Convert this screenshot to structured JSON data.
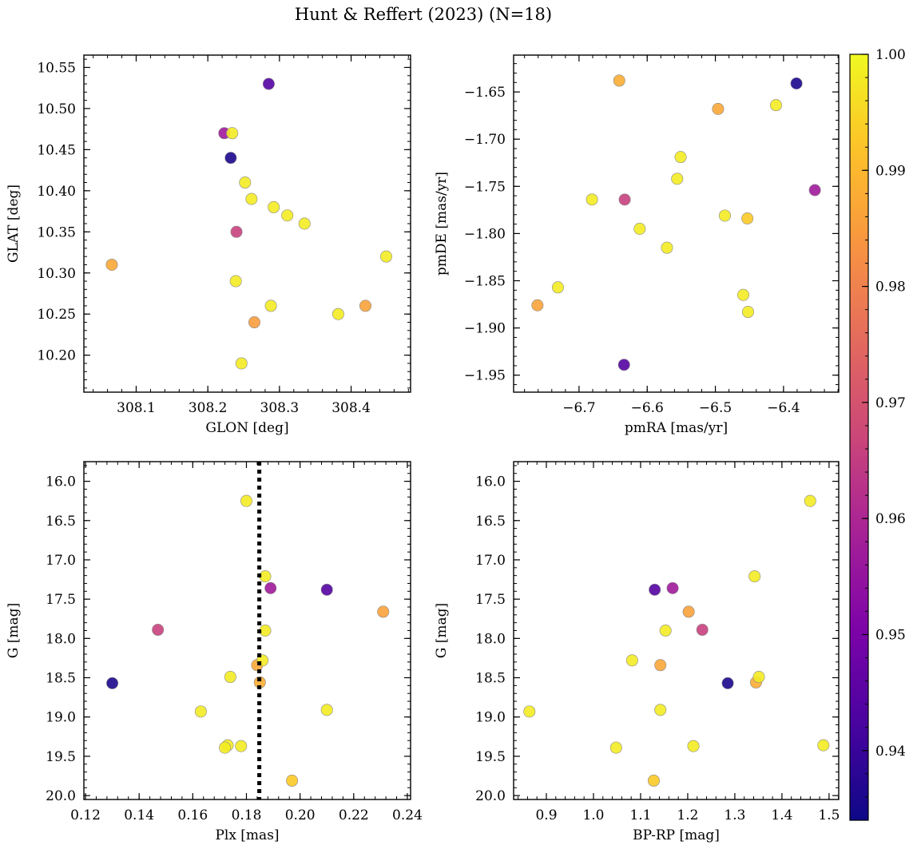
{
  "figure": {
    "title": "Hunt & Reffert (2023) (N=18)"
  },
  "colorbar": {
    "min": 0.934,
    "max": 1.0,
    "ticks": [
      0.94,
      0.95,
      0.96,
      0.97,
      0.98,
      0.99,
      1.0
    ],
    "tick_labels": [
      "0.94",
      "0.95",
      "0.96",
      "0.97",
      "0.98",
      "0.99",
      "1.00"
    ],
    "colormap": "plasma"
  },
  "chart_data": [
    {
      "id": "glon-glat",
      "type": "scatter",
      "title": "",
      "xlabel": "GLON [deg]",
      "ylabel": "GLAT [deg]",
      "xlim": [
        308.027,
        308.483
      ],
      "ylim": [
        10.155,
        10.565
      ],
      "y_inverted": false,
      "xticks": [
        308.1,
        308.2,
        308.3,
        308.4
      ],
      "xtick_labels": [
        "308.1",
        "308.2",
        "308.3",
        "308.4"
      ],
      "yticks": [
        10.2,
        10.25,
        10.3,
        10.35,
        10.4,
        10.45,
        10.5,
        10.55
      ],
      "ytick_labels": [
        "10.20",
        "10.25",
        "10.30",
        "10.35",
        "10.40",
        "10.45",
        "10.50",
        "10.55"
      ],
      "x_minor_step": 0.02,
      "y_minor_step": 0.01,
      "points": [
        {
          "x": 308.066,
          "y": 10.31,
          "c": 0.987
        },
        {
          "x": 308.223,
          "y": 10.47,
          "c": 0.957
        },
        {
          "x": 308.234,
          "y": 10.47,
          "c": 0.998
        },
        {
          "x": 308.232,
          "y": 10.44,
          "c": 0.936
        },
        {
          "x": 308.285,
          "y": 10.53,
          "c": 0.944
        },
        {
          "x": 308.252,
          "y": 10.41,
          "c": 0.998
        },
        {
          "x": 308.261,
          "y": 10.39,
          "c": 0.998
        },
        {
          "x": 308.292,
          "y": 10.38,
          "c": 0.998
        },
        {
          "x": 308.311,
          "y": 10.37,
          "c": 0.998
        },
        {
          "x": 308.335,
          "y": 10.36,
          "c": 0.998
        },
        {
          "x": 308.24,
          "y": 10.35,
          "c": 0.966
        },
        {
          "x": 308.449,
          "y": 10.32,
          "c": 0.998
        },
        {
          "x": 308.239,
          "y": 10.29,
          "c": 0.998
        },
        {
          "x": 308.288,
          "y": 10.26,
          "c": 0.998
        },
        {
          "x": 308.42,
          "y": 10.26,
          "c": 0.986
        },
        {
          "x": 308.382,
          "y": 10.25,
          "c": 0.998
        },
        {
          "x": 308.265,
          "y": 10.24,
          "c": 0.985
        },
        {
          "x": 308.247,
          "y": 10.19,
          "c": 0.998
        }
      ]
    },
    {
      "id": "pmra-pmde",
      "type": "scatter",
      "title": "",
      "xlabel": "pmRA [mas/yr]",
      "ylabel": "pmDE [mas/yr]",
      "xlim": [
        -6.796,
        -6.319
      ],
      "ylim": [
        -1.968,
        -1.611
      ],
      "y_inverted": false,
      "xticks": [
        -6.7,
        -6.6,
        -6.5,
        -6.4
      ],
      "xtick_labels": [
        "−6.7",
        "−6.6",
        "−6.5",
        "−6.4"
      ],
      "yticks": [
        -1.95,
        -1.9,
        -1.85,
        -1.8,
        -1.75,
        -1.7,
        -1.65
      ],
      "ytick_labels": [
        "−1.95",
        "−1.90",
        "−1.85",
        "−1.80",
        "−1.75",
        "−1.70",
        "−1.65"
      ],
      "x_minor_step": 0.02,
      "y_minor_step": 0.01,
      "points": [
        {
          "x": -6.641,
          "y": -1.638,
          "c": 0.988
        },
        {
          "x": -6.381,
          "y": -1.641,
          "c": 0.936
        },
        {
          "x": -6.496,
          "y": -1.668,
          "c": 0.987
        },
        {
          "x": -6.411,
          "y": -1.664,
          "c": 0.998
        },
        {
          "x": -6.551,
          "y": -1.719,
          "c": 0.998
        },
        {
          "x": -6.556,
          "y": -1.742,
          "c": 0.998
        },
        {
          "x": -6.681,
          "y": -1.764,
          "c": 0.998
        },
        {
          "x": -6.633,
          "y": -1.764,
          "c": 0.966
        },
        {
          "x": -6.354,
          "y": -1.754,
          "c": 0.957
        },
        {
          "x": -6.486,
          "y": -1.781,
          "c": 0.998
        },
        {
          "x": -6.453,
          "y": -1.784,
          "c": 0.993
        },
        {
          "x": -6.611,
          "y": -1.795,
          "c": 0.998
        },
        {
          "x": -6.571,
          "y": -1.815,
          "c": 0.998
        },
        {
          "x": -6.731,
          "y": -1.857,
          "c": 0.998
        },
        {
          "x": -6.459,
          "y": -1.865,
          "c": 0.998
        },
        {
          "x": -6.761,
          "y": -1.876,
          "c": 0.986
        },
        {
          "x": -6.452,
          "y": -1.883,
          "c": 0.998
        },
        {
          "x": -6.634,
          "y": -1.939,
          "c": 0.944
        }
      ]
    },
    {
      "id": "plx-g",
      "type": "scatter",
      "title": "",
      "xlabel": "Plx [mas]",
      "ylabel": "G [mag]",
      "xlim": [
        0.1194,
        0.2412
      ],
      "ylim": [
        20.05,
        15.75
      ],
      "y_inverted": true,
      "xticks": [
        0.12,
        0.14,
        0.16,
        0.18,
        0.2,
        0.22,
        0.24
      ],
      "xtick_labels": [
        "0.12",
        "0.14",
        "0.16",
        "0.18",
        "0.20",
        "0.22",
        "0.24"
      ],
      "yticks": [
        16.0,
        16.5,
        17.0,
        17.5,
        18.0,
        18.5,
        19.0,
        19.5,
        20.0
      ],
      "ytick_labels": [
        "16.0",
        "16.5",
        "17.0",
        "17.5",
        "18.0",
        "18.5",
        "19.0",
        "19.5",
        "20.0"
      ],
      "x_minor_step": 0.004,
      "y_minor_step": 0.1,
      "vline": {
        "x": 0.1848,
        "style": "dotted"
      },
      "points": [
        {
          "x": 0.18,
          "y": 16.25,
          "c": 0.998
        },
        {
          "x": 0.187,
          "y": 17.21,
          "c": 0.998
        },
        {
          "x": 0.189,
          "y": 17.36,
          "c": 0.957
        },
        {
          "x": 0.21,
          "y": 17.38,
          "c": 0.944
        },
        {
          "x": 0.231,
          "y": 17.66,
          "c": 0.986
        },
        {
          "x": 0.147,
          "y": 17.89,
          "c": 0.966
        },
        {
          "x": 0.187,
          "y": 17.9,
          "c": 0.998
        },
        {
          "x": 0.184,
          "y": 18.34,
          "c": 0.987
        },
        {
          "x": 0.186,
          "y": 18.28,
          "c": 0.998
        },
        {
          "x": 0.174,
          "y": 18.49,
          "c": 0.998
        },
        {
          "x": 0.13,
          "y": 18.57,
          "c": 0.936
        },
        {
          "x": 0.185,
          "y": 18.56,
          "c": 0.988
        },
        {
          "x": 0.163,
          "y": 18.93,
          "c": 0.998
        },
        {
          "x": 0.21,
          "y": 18.91,
          "c": 0.998
        },
        {
          "x": 0.173,
          "y": 19.36,
          "c": 0.998
        },
        {
          "x": 0.178,
          "y": 19.37,
          "c": 0.998
        },
        {
          "x": 0.172,
          "y": 19.39,
          "c": 0.998
        },
        {
          "x": 0.197,
          "y": 19.81,
          "c": 0.993
        }
      ]
    },
    {
      "id": "bprp-g",
      "type": "scatter",
      "title": "",
      "xlabel": "BP-RP [mag]",
      "ylabel": "G [mag]",
      "xlim": [
        0.8305,
        1.5205
      ],
      "ylim": [
        20.05,
        15.75
      ],
      "y_inverted": true,
      "xticks": [
        0.9,
        1.0,
        1.1,
        1.2,
        1.3,
        1.4,
        1.5
      ],
      "xtick_labels": [
        "0.9",
        "1.0",
        "1.1",
        "1.2",
        "1.3",
        "1.4",
        "1.5"
      ],
      "yticks": [
        16.0,
        16.5,
        17.0,
        17.5,
        18.0,
        18.5,
        19.0,
        19.5,
        20.0
      ],
      "ytick_labels": [
        "16.0",
        "16.5",
        "17.0",
        "17.5",
        "18.0",
        "18.5",
        "19.0",
        "19.5",
        "20.0"
      ],
      "x_minor_step": 0.02,
      "y_minor_step": 0.1,
      "points": [
        {
          "x": 1.46,
          "y": 16.25,
          "c": 0.998
        },
        {
          "x": 1.342,
          "y": 17.21,
          "c": 0.998
        },
        {
          "x": 1.13,
          "y": 17.38,
          "c": 0.944
        },
        {
          "x": 1.168,
          "y": 17.36,
          "c": 0.957
        },
        {
          "x": 1.202,
          "y": 17.66,
          "c": 0.986
        },
        {
          "x": 1.153,
          "y": 17.9,
          "c": 0.998
        },
        {
          "x": 1.231,
          "y": 17.89,
          "c": 0.966
        },
        {
          "x": 1.082,
          "y": 18.28,
          "c": 0.998
        },
        {
          "x": 1.142,
          "y": 18.34,
          "c": 0.987
        },
        {
          "x": 1.285,
          "y": 18.57,
          "c": 0.936
        },
        {
          "x": 1.345,
          "y": 18.56,
          "c": 0.988
        },
        {
          "x": 1.351,
          "y": 18.49,
          "c": 0.998
        },
        {
          "x": 0.864,
          "y": 18.93,
          "c": 0.998
        },
        {
          "x": 1.142,
          "y": 18.91,
          "c": 0.998
        },
        {
          "x": 1.048,
          "y": 19.39,
          "c": 0.998
        },
        {
          "x": 1.212,
          "y": 19.37,
          "c": 0.998
        },
        {
          "x": 1.488,
          "y": 19.36,
          "c": 0.998
        },
        {
          "x": 1.128,
          "y": 19.81,
          "c": 0.993
        }
      ]
    }
  ]
}
